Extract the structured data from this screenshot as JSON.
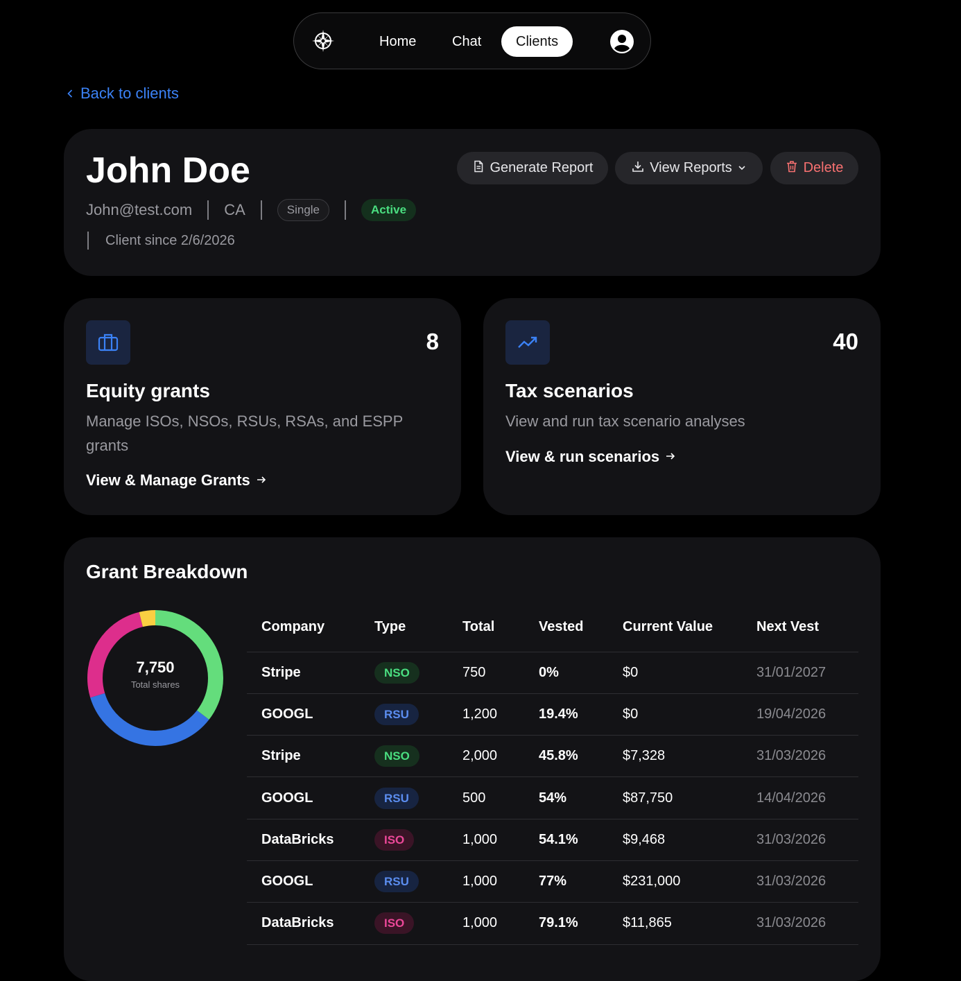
{
  "nav": {
    "logo_icon": "compass-icon",
    "items": [
      {
        "label": "Home"
      },
      {
        "label": "Chat"
      },
      {
        "label": "Clients"
      }
    ],
    "active": "Clients",
    "profile_icon": "user-icon"
  },
  "back": {
    "label": "Back to clients"
  },
  "client": {
    "name": "John Doe",
    "email": "John@test.com",
    "state": "CA",
    "filing_status": "Single",
    "status": "Active",
    "since": "Client since 2/6/2026"
  },
  "actions": {
    "generate": "Generate Report",
    "view_reports": "View Reports",
    "delete": "Delete"
  },
  "equity": {
    "count": "8",
    "title": "Equity grants",
    "description": "Manage ISOs, NSOs, RSUs, RSAs, and ESPP grants",
    "link": "View & Manage Grants"
  },
  "tax": {
    "count": "40",
    "title": "Tax scenarios",
    "description": "View and run tax scenario analyses",
    "link": "View & run scenarios"
  },
  "grants": {
    "title": "Grant Breakdown",
    "total_value": "7,750",
    "total_label": "Total shares",
    "columns": [
      "Company",
      "Type",
      "Total",
      "Vested",
      "Current Value",
      "Next Vest"
    ],
    "rows": [
      {
        "company": "Stripe",
        "type": "NSO",
        "total": "750",
        "vested": "0%",
        "value": "$0",
        "next": "31/01/2027"
      },
      {
        "company": "GOOGL",
        "type": "RSU",
        "total": "1,200",
        "vested": "19.4%",
        "value": "$0",
        "next": "19/04/2026"
      },
      {
        "company": "Stripe",
        "type": "NSO",
        "total": "2,000",
        "vested": "45.8%",
        "value": "$7,328",
        "next": "31/03/2026"
      },
      {
        "company": "GOOGL",
        "type": "RSU",
        "total": "500",
        "vested": "54%",
        "value": "$87,750",
        "next": "14/04/2026"
      },
      {
        "company": "DataBricks",
        "type": "ISO",
        "total": "1,000",
        "vested": "54.1%",
        "value": "$9,468",
        "next": "31/03/2026"
      },
      {
        "company": "GOOGL",
        "type": "RSU",
        "total": "1,000",
        "vested": "77%",
        "value": "$231,000",
        "next": "31/03/2026"
      },
      {
        "company": "DataBricks",
        "type": "ISO",
        "total": "1,000",
        "vested": "79.1%",
        "value": "$11,865",
        "next": "31/03/2026"
      }
    ],
    "donut": [
      {
        "label": "NSO",
        "value": 2750,
        "color": "#64dd7c"
      },
      {
        "label": "RSU",
        "value": 2700,
        "color": "#3574e3"
      },
      {
        "label": "ISO",
        "value": 2000,
        "color": "#dd2e8c"
      },
      {
        "label": "other",
        "value": 300,
        "color": "#f9cf42"
      }
    ]
  }
}
